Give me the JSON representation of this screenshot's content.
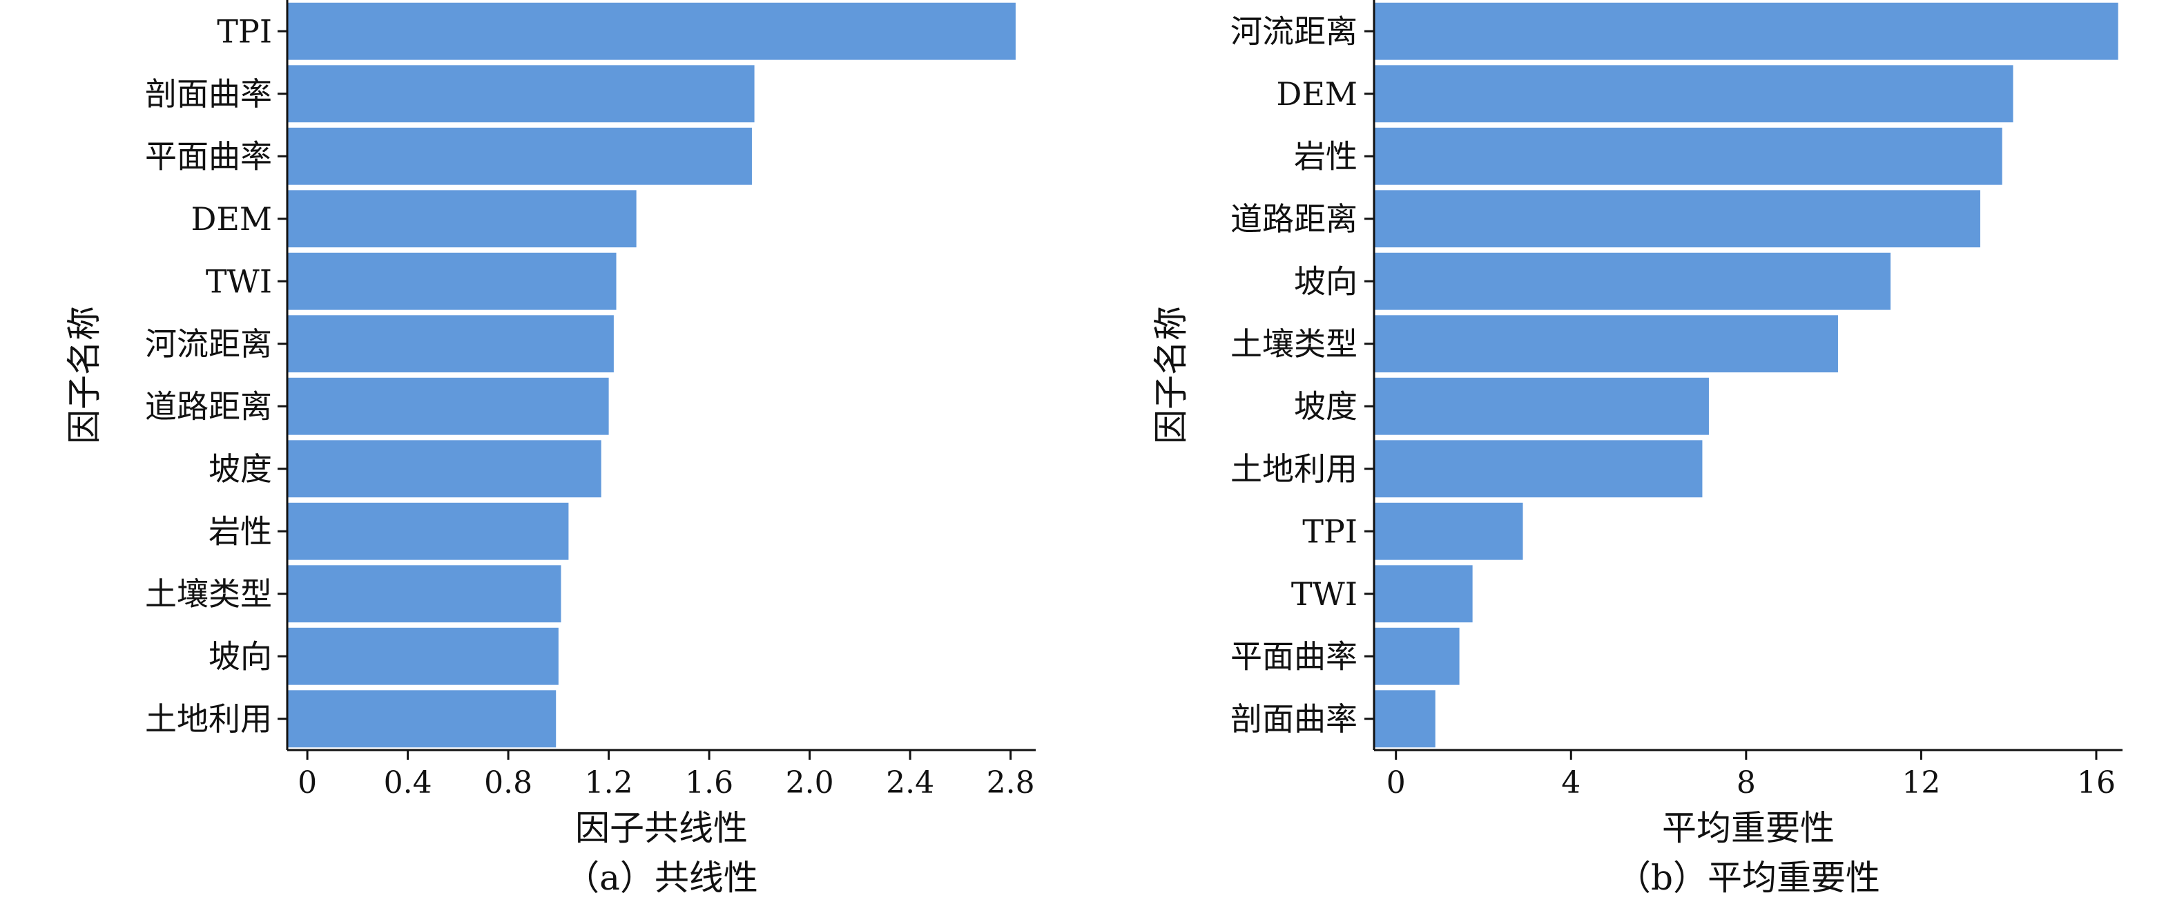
{
  "chart_data": [
    {
      "type": "bar",
      "orientation": "horizontal",
      "categories": [
        "TPI",
        "剖面曲率",
        "平面曲率",
        "DEM",
        "TWI",
        "河流距离",
        "道路距离",
        "坡度",
        "岩性",
        "土壤类型",
        "坡向",
        "土地利用"
      ],
      "values": [
        2.82,
        1.78,
        1.77,
        1.31,
        1.23,
        1.22,
        1.2,
        1.17,
        1.04,
        1.01,
        1.0,
        0.99
      ],
      "xlabel": "因子共线性",
      "ylabel": "因子名称",
      "caption": "（a）共线性",
      "xlim": [
        -0.08,
        2.9
      ],
      "xticks": [
        0,
        0.4,
        0.8,
        1.2,
        1.6,
        2.0,
        2.4,
        2.8
      ],
      "xtick_labels": [
        "0",
        "0.4",
        "0.8",
        "1.2",
        "1.6",
        "2.0",
        "2.4",
        "2.8"
      ],
      "grid": false,
      "bar_color": "#6199DB"
    },
    {
      "type": "bar",
      "orientation": "horizontal",
      "categories": [
        "河流距离",
        "DEM",
        "岩性",
        "道路距离",
        "坡向",
        "土壤类型",
        "坡度",
        "土地利用",
        "TPI",
        "TWI",
        "平面曲率",
        "剖面曲率"
      ],
      "values": [
        16.5,
        14.1,
        13.85,
        13.35,
        11.3,
        10.1,
        7.15,
        7.0,
        2.9,
        1.75,
        1.45,
        0.9
      ],
      "xlabel": "平均重要性",
      "ylabel": "因子名称",
      "caption": "（b）平均重要性",
      "xlim": [
        -0.5,
        16.6
      ],
      "xticks": [
        0,
        4,
        8,
        12,
        16
      ],
      "xtick_labels": [
        "0",
        "4",
        "8",
        "12",
        "16"
      ],
      "grid": false,
      "bar_color": "#6199DB"
    }
  ]
}
